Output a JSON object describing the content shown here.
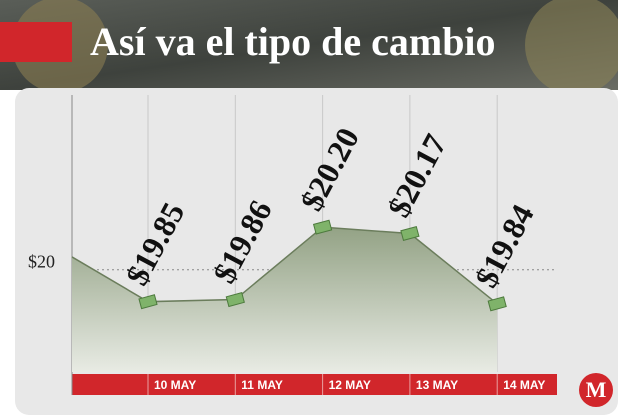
{
  "chart_data": {
    "type": "area-line",
    "title": "Así va el tipo de cambio",
    "categories": [
      null,
      "10 MAY",
      "11 MAY",
      "12 MAY",
      "13 MAY",
      "14 MAY"
    ],
    "values": [
      20.06,
      19.85,
      19.86,
      20.2,
      20.17,
      19.84
    ],
    "value_labels": [
      null,
      "$19.85",
      "$19.86",
      "$20.20",
      "$20.17",
      "$19.84"
    ],
    "ylim": [
      19.52,
      20.82
    ],
    "yticks": [
      {
        "value": 20,
        "label": "$20"
      }
    ],
    "color": "#6b7d5c",
    "logo": "M"
  }
}
